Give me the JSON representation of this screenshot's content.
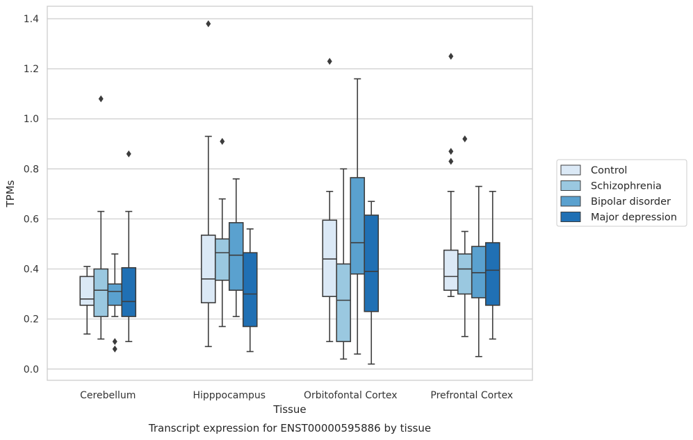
{
  "chart_data": {
    "type": "box",
    "title": "",
    "xlabel": "Tissue",
    "ylabel": "TPMs",
    "caption": "Transcript expression for ENST00000595886 by tissue",
    "ylim": [
      -0.045,
      1.45
    ],
    "yticks": [
      0.0,
      0.2,
      0.4,
      0.6,
      0.8,
      1.0,
      1.2,
      1.4
    ],
    "ytick_labels": [
      "0.0",
      "0.2",
      "0.4",
      "0.6",
      "0.8",
      "1.0",
      "1.2",
      "1.4"
    ],
    "grid": "horizontal",
    "legend_position": "right",
    "categories": [
      "Cerebellum",
      "Hipppocampus",
      "Orbitofontal Cortex",
      "Prefrontal Cortex"
    ],
    "series": [
      {
        "name": "Control",
        "color": "#dbe9f6",
        "boxes": [
          {
            "whislo": 0.14,
            "q1": 0.255,
            "med": 0.28,
            "q3": 0.37,
            "whishi": 0.41,
            "fliers": []
          },
          {
            "whislo": 0.09,
            "q1": 0.265,
            "med": 0.36,
            "q3": 0.535,
            "whishi": 0.93,
            "fliers": [
              1.38
            ]
          },
          {
            "whislo": 0.11,
            "q1": 0.29,
            "med": 0.44,
            "q3": 0.595,
            "whishi": 0.71,
            "fliers": [
              1.23
            ]
          },
          {
            "whislo": 0.29,
            "q1": 0.315,
            "med": 0.37,
            "q3": 0.475,
            "whishi": 0.71,
            "fliers": [
              0.83,
              0.87,
              1.25
            ]
          }
        ]
      },
      {
        "name": "Schizophrenia",
        "color": "#9ac8e0",
        "boxes": [
          {
            "whislo": 0.12,
            "q1": 0.21,
            "med": 0.315,
            "q3": 0.4,
            "whishi": 0.63,
            "fliers": [
              1.08
            ]
          },
          {
            "whislo": 0.17,
            "q1": 0.355,
            "med": 0.465,
            "q3": 0.52,
            "whishi": 0.68,
            "fliers": [
              0.91
            ]
          },
          {
            "whislo": 0.04,
            "q1": 0.11,
            "med": 0.275,
            "q3": 0.42,
            "whishi": 0.8,
            "fliers": []
          },
          {
            "whislo": 0.13,
            "q1": 0.3,
            "med": 0.4,
            "q3": 0.46,
            "whishi": 0.55,
            "fliers": [
              0.92
            ]
          }
        ]
      },
      {
        "name": "Bipolar disorder",
        "color": "#5aa1cf",
        "boxes": [
          {
            "whislo": 0.21,
            "q1": 0.255,
            "med": 0.31,
            "q3": 0.34,
            "whishi": 0.46,
            "fliers": [
              0.08,
              0.11
            ]
          },
          {
            "whislo": 0.21,
            "q1": 0.315,
            "med": 0.455,
            "q3": 0.585,
            "whishi": 0.76,
            "fliers": []
          },
          {
            "whislo": 0.06,
            "q1": 0.38,
            "med": 0.505,
            "q3": 0.765,
            "whishi": 1.16,
            "fliers": []
          },
          {
            "whislo": 0.05,
            "q1": 0.285,
            "med": 0.385,
            "q3": 0.49,
            "whishi": 0.73,
            "fliers": []
          }
        ]
      },
      {
        "name": "Major depression",
        "color": "#2070b4",
        "boxes": [
          {
            "whislo": 0.11,
            "q1": 0.21,
            "med": 0.27,
            "q3": 0.405,
            "whishi": 0.63,
            "fliers": [
              0.86
            ]
          },
          {
            "whislo": 0.07,
            "q1": 0.17,
            "med": 0.3,
            "q3": 0.465,
            "whishi": 0.56,
            "fliers": []
          },
          {
            "whislo": 0.02,
            "q1": 0.23,
            "med": 0.39,
            "q3": 0.615,
            "whishi": 0.67,
            "fliers": []
          },
          {
            "whislo": 0.12,
            "q1": 0.255,
            "med": 0.395,
            "q3": 0.505,
            "whishi": 0.71,
            "fliers": []
          }
        ]
      }
    ]
  }
}
